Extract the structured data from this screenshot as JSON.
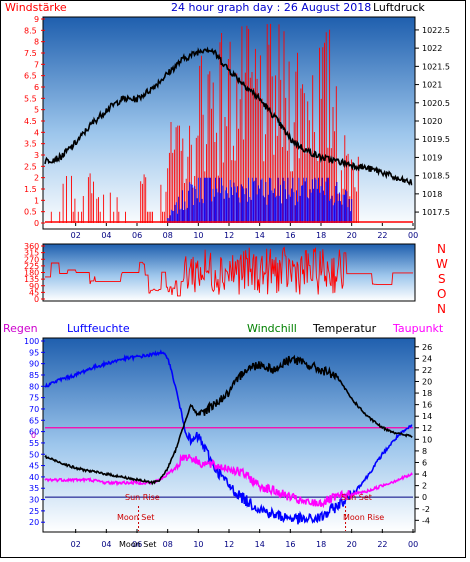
{
  "page": {
    "title": "24 hour graph day : 26 August 2018"
  },
  "top_panel": {
    "left_label": "Windstärke",
    "right_label": "Luftdruck",
    "left_ticks": [
      "9",
      "8.5",
      "8",
      "7.5",
      "7",
      "6.5",
      "6",
      "5.5",
      "5",
      "4.5",
      "4",
      "3.5",
      "3",
      "2.5",
      "2",
      "1.5",
      "1",
      "0.5",
      "0"
    ],
    "right_ticks": [
      "1022.5",
      "1022",
      "1021.5",
      "1021",
      "1020.5",
      "1020",
      "1019.5",
      "1019",
      "1018.5",
      "1018",
      "1017.5"
    ],
    "x_ticks": [
      "02",
      "04",
      "06",
      "08",
      "10",
      "12",
      "14",
      "16",
      "18",
      "20",
      "22",
      "00"
    ]
  },
  "mid_panel": {
    "left_ticks": [
      "360",
      "315",
      "270",
      "225",
      "180",
      "135",
      "90",
      "45",
      "0"
    ],
    "compass": [
      "N",
      "W",
      "S",
      "O",
      "N"
    ]
  },
  "bottom_panel": {
    "label_rain": "Regen",
    "label_humidity": "Luftfeuchte",
    "label_windchill": "Windchill",
    "label_temperature": "Temperatur",
    "label_dewpoint": "Taupunkt",
    "left_ticks": [
      "100",
      "95",
      "90",
      "85",
      "80",
      "75",
      "70",
      "65",
      "60",
      "55",
      "50",
      "45",
      "40",
      "35",
      "30",
      "25",
      "20"
    ],
    "right_ticks": [
      "26",
      "24",
      "22",
      "20",
      "18",
      "16",
      "14",
      "12",
      "10",
      "8",
      "6",
      "4",
      "2",
      "0",
      "-2",
      "-4"
    ],
    "rain_zero": "0",
    "x_ticks": [
      "02",
      "04",
      "06",
      "08",
      "10",
      "12",
      "14",
      "16",
      "18",
      "20",
      "22",
      "00"
    ],
    "annotations": {
      "sun_rise": "Sun Rise",
      "sun_set": "Sun Set",
      "moon_set": "Moon Set",
      "moon_rise": "Moon Rise"
    }
  },
  "colors": {
    "axis_red": "#ff0000",
    "axis_blue": "#0000ff",
    "pressure": "#000000",
    "gust": "#ff0000",
    "wind": "#0000ff",
    "temperature": "#000000",
    "dewpoint": "#ff00ff",
    "humidity": "#0000ff",
    "windchill": "#008000",
    "rain_label": "#cc00cc"
  },
  "chart_data": [
    {
      "type": "line",
      "series": [
        {
          "name": "Luftdruck",
          "x_hours": [
            0,
            1,
            2,
            3,
            4,
            5,
            6,
            7,
            8,
            9,
            10,
            10.5,
            11,
            12,
            13,
            14,
            15,
            16,
            17,
            18,
            19,
            20,
            21,
            22,
            23,
            24
          ],
          "values": [
            1018.9,
            1019.0,
            1019.4,
            1019.9,
            1020.3,
            1020.6,
            1020.6,
            1020.9,
            1021.3,
            1021.7,
            1021.9,
            1022.0,
            1021.9,
            1021.4,
            1021.0,
            1020.6,
            1020.1,
            1019.5,
            1019.2,
            1019.0,
            1018.9,
            1018.8,
            1018.7,
            1018.6,
            1018.4,
            1018.3
          ]
        },
        {
          "name": "Windstärke",
          "x_hours": [
            0,
            2,
            4,
            6,
            8,
            9,
            10,
            11,
            12,
            13,
            14,
            15,
            16,
            17,
            18,
            19,
            20,
            21,
            22,
            23,
            24
          ],
          "values": [
            0,
            0,
            0,
            0,
            0.2,
            1.0,
            1.6,
            1.8,
            1.4,
            1.6,
            1.7,
            1.5,
            1.6,
            1.5,
            1.5,
            1.4,
            0.8,
            0,
            0,
            0,
            0
          ]
        }
      ],
      "ylim_left": [
        0,
        9
      ],
      "ylim_right": [
        1017.2,
        1022.8
      ]
    },
    {
      "type": "line",
      "series": [
        {
          "name": "Windrichtung",
          "x_hours": [
            0,
            2,
            4,
            6,
            8,
            10,
            12,
            14,
            16,
            18,
            20,
            22,
            24
          ],
          "values": [
            150,
            200,
            230,
            170,
            60,
            250,
            200,
            210,
            220,
            180,
            160,
            60,
            180
          ]
        }
      ],
      "ylim": [
        0,
        360
      ]
    },
    {
      "type": "line",
      "series": [
        {
          "name": "Luftfeuchte",
          "x_hours": [
            0,
            1,
            2,
            3,
            4,
            5,
            6,
            7,
            7.5,
            8,
            8.5,
            9,
            9.5,
            10,
            11,
            12,
            13,
            14,
            15,
            16,
            17,
            18,
            19,
            20,
            21,
            22,
            23,
            24
          ],
          "values": [
            80,
            83,
            85,
            88,
            90,
            92,
            93,
            94,
            95,
            93,
            80,
            65,
            55,
            58,
            45,
            36,
            30,
            26,
            23,
            22,
            21,
            22,
            27,
            32,
            40,
            50,
            58,
            63
          ]
        },
        {
          "name": "Temperatur",
          "x_hours": [
            0,
            1,
            2,
            3,
            4,
            5,
            6,
            7,
            7.5,
            8,
            8.5,
            9,
            9.5,
            10,
            11,
            12,
            13,
            14,
            15,
            16,
            17,
            18,
            19,
            20,
            21,
            22,
            23,
            24
          ],
          "values": [
            7,
            6,
            5,
            4.5,
            4,
            3.5,
            3,
            2.5,
            3,
            5,
            8,
            12,
            16,
            14,
            16,
            18,
            22,
            23,
            22,
            24,
            23,
            22,
            21,
            17,
            14,
            12,
            11,
            10.5
          ]
        },
        {
          "name": "Taupunkt",
          "x_hours": [
            0,
            1,
            2,
            3,
            4,
            5,
            6,
            7,
            7.5,
            8,
            8.5,
            9,
            9.5,
            10,
            11,
            12,
            13,
            14,
            15,
            16,
            17,
            18,
            19,
            20,
            21,
            22,
            23,
            24
          ],
          "values": [
            3,
            3,
            3,
            3,
            2.5,
            2.5,
            2.5,
            2.5,
            3,
            4,
            5,
            7,
            7,
            6,
            5.5,
            5,
            4,
            2,
            1,
            0,
            -1,
            -1,
            0,
            0.5,
            1,
            2,
            3,
            4
          ]
        }
      ],
      "ylim_left": [
        17,
        100
      ],
      "ylim_right": [
        -5.5,
        27
      ]
    }
  ]
}
